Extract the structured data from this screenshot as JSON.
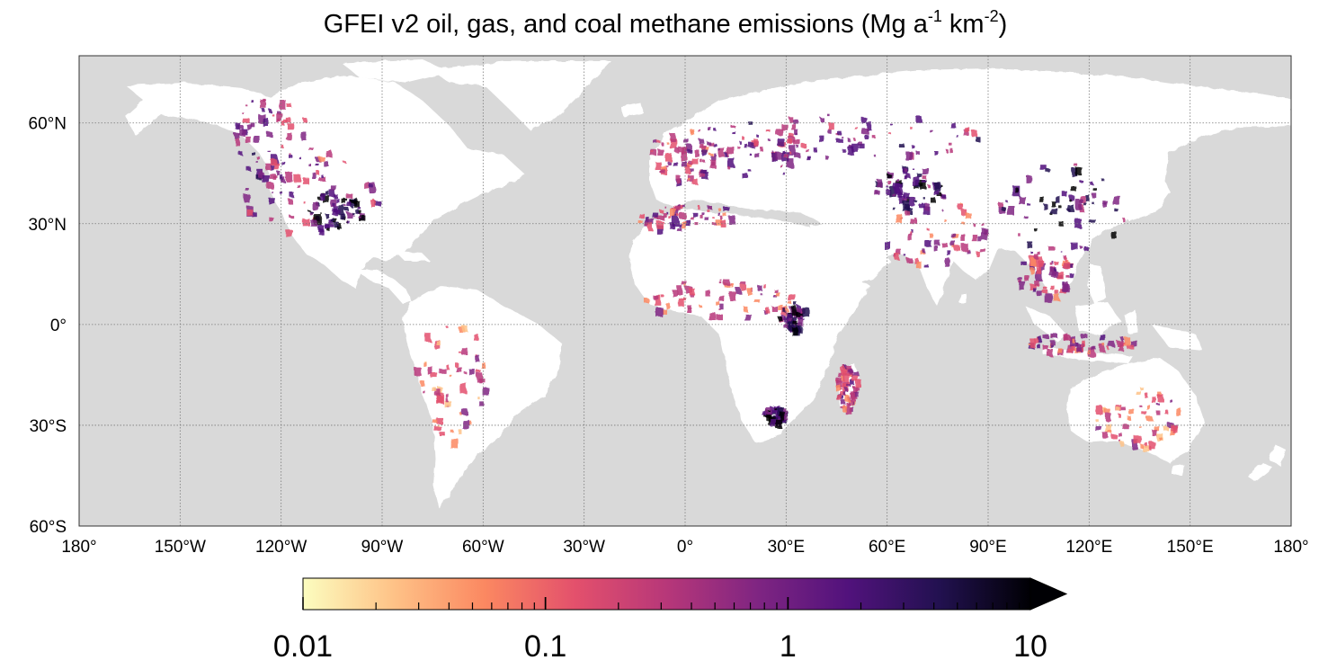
{
  "title": {
    "main": "GFEI v2 oil, gas, and coal methane emissions (Mg a",
    "sup1": "-1",
    "mid": " km",
    "sup2": "-2",
    "end": ")"
  },
  "map": {
    "ocean_color": "#d9d9d9",
    "land_color": "#ffffff",
    "grid_color": "#7a7a7a",
    "lon_extent": [
      -180,
      180
    ],
    "lat_extent": [
      -60,
      80
    ],
    "latitude_ticks": [
      {
        "value": 60,
        "label": "60°N"
      },
      {
        "value": 30,
        "label": "30°N"
      },
      {
        "value": 0,
        "label": "0°"
      },
      {
        "value": -30,
        "label": "30°S"
      },
      {
        "value": -60,
        "label": "60°S"
      }
    ],
    "longitude_ticks": [
      {
        "value": -180,
        "label": "180°"
      },
      {
        "value": -150,
        "label": "150°W"
      },
      {
        "value": -120,
        "label": "120°W"
      },
      {
        "value": -90,
        "label": "90°W"
      },
      {
        "value": -60,
        "label": "60°W"
      },
      {
        "value": -30,
        "label": "30°W"
      },
      {
        "value": 0,
        "label": "0°"
      },
      {
        "value": 30,
        "label": "30°E"
      },
      {
        "value": 60,
        "label": "60°E"
      },
      {
        "value": 90,
        "label": "90°E"
      },
      {
        "value": 120,
        "label": "120°E"
      },
      {
        "value": 150,
        "label": "150°E"
      },
      {
        "value": 180,
        "label": "180°"
      }
    ]
  },
  "colorbar": {
    "scale": "log",
    "min": 0.01,
    "max": 10,
    "extend": "max",
    "colormap": "magma_r",
    "colors": [
      "#fcfdbf",
      "#fec287",
      "#fb8861",
      "#e3506c",
      "#b73779",
      "#7f2582",
      "#51127c",
      "#221150",
      "#000004"
    ],
    "ticks": [
      {
        "value": 0.01,
        "label": "0.01"
      },
      {
        "value": 0.1,
        "label": "0.1"
      },
      {
        "value": 1,
        "label": "1"
      },
      {
        "value": 10,
        "label": "10"
      }
    ]
  }
}
